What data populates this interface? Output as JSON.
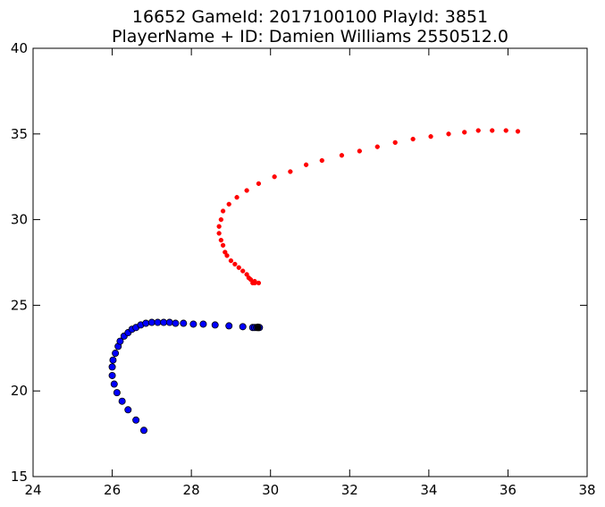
{
  "chart_data": {
    "type": "scatter",
    "title": "16652 GameId: 2017100100 PlayId: 3851\nPlayerName + ID: Damien Williams 2550512.0",
    "title_lines": [
      "16652 GameId: 2017100100 PlayId: 3851",
      "PlayerName + ID: Damien Williams 2550512.0"
    ],
    "xlabel": "",
    "ylabel": "",
    "xlim": [
      24,
      38
    ],
    "ylim": [
      15,
      40
    ],
    "xticks": [
      "24",
      "26",
      "28",
      "30",
      "32",
      "34",
      "36",
      "38"
    ],
    "yticks": [
      "15",
      "20",
      "25",
      "30",
      "35",
      "40"
    ],
    "grid": false,
    "legend": "none",
    "series": [
      {
        "color": "#ff0000",
        "marker": "small-dot",
        "points": [
          [
            29.7,
            26.3
          ],
          [
            29.6,
            26.3
          ],
          [
            29.55,
            26.3
          ],
          [
            29.6,
            26.4
          ],
          [
            29.5,
            26.5
          ],
          [
            29.45,
            26.6
          ],
          [
            29.4,
            26.8
          ],
          [
            29.3,
            27.0
          ],
          [
            29.2,
            27.2
          ],
          [
            29.1,
            27.4
          ],
          [
            29.0,
            27.6
          ],
          [
            28.9,
            27.9
          ],
          [
            28.85,
            28.1
          ],
          [
            28.8,
            28.5
          ],
          [
            28.75,
            28.8
          ],
          [
            28.7,
            29.2
          ],
          [
            28.7,
            29.6
          ],
          [
            28.75,
            30.0
          ],
          [
            28.8,
            30.5
          ],
          [
            28.95,
            30.9
          ],
          [
            29.15,
            31.3
          ],
          [
            29.4,
            31.7
          ],
          [
            29.7,
            32.1
          ],
          [
            30.1,
            32.5
          ],
          [
            30.5,
            32.8
          ],
          [
            30.9,
            33.2
          ],
          [
            31.3,
            33.45
          ],
          [
            31.8,
            33.75
          ],
          [
            32.25,
            34.0
          ],
          [
            32.7,
            34.25
          ],
          [
            33.15,
            34.5
          ],
          [
            33.6,
            34.7
          ],
          [
            34.05,
            34.85
          ],
          [
            34.5,
            35.0
          ],
          [
            34.9,
            35.1
          ],
          [
            35.25,
            35.2
          ],
          [
            35.6,
            35.2
          ],
          [
            35.95,
            35.2
          ],
          [
            36.25,
            35.15
          ]
        ]
      },
      {
        "color": "#0000ff",
        "marker": "large-dot",
        "points": [
          [
            26.8,
            17.7
          ],
          [
            26.6,
            18.3
          ],
          [
            26.4,
            18.9
          ],
          [
            26.25,
            19.4
          ],
          [
            26.12,
            19.9
          ],
          [
            26.05,
            20.4
          ],
          [
            26.0,
            20.9
          ],
          [
            26.0,
            21.4
          ],
          [
            26.02,
            21.8
          ],
          [
            26.08,
            22.2
          ],
          [
            26.15,
            22.6
          ],
          [
            26.2,
            22.9
          ],
          [
            26.3,
            23.2
          ],
          [
            26.4,
            23.4
          ],
          [
            26.5,
            23.6
          ],
          [
            26.6,
            23.7
          ],
          [
            26.72,
            23.85
          ],
          [
            26.85,
            23.95
          ],
          [
            27.0,
            24.0
          ],
          [
            27.15,
            24.0
          ],
          [
            27.3,
            24.0
          ],
          [
            27.45,
            24.0
          ],
          [
            27.6,
            23.95
          ],
          [
            27.8,
            23.95
          ],
          [
            28.05,
            23.9
          ],
          [
            28.3,
            23.9
          ],
          [
            28.6,
            23.85
          ],
          [
            28.95,
            23.8
          ],
          [
            29.3,
            23.75
          ],
          [
            29.55,
            23.7
          ],
          [
            29.6,
            23.7
          ],
          [
            29.65,
            23.7
          ],
          [
            29.7,
            23.7
          ],
          [
            29.68,
            23.72
          ],
          [
            29.72,
            23.7
          ]
        ]
      },
      {
        "color": "#000000",
        "marker": "endpoint-dot",
        "points": [
          [
            29.68,
            23.7
          ]
        ]
      }
    ]
  }
}
